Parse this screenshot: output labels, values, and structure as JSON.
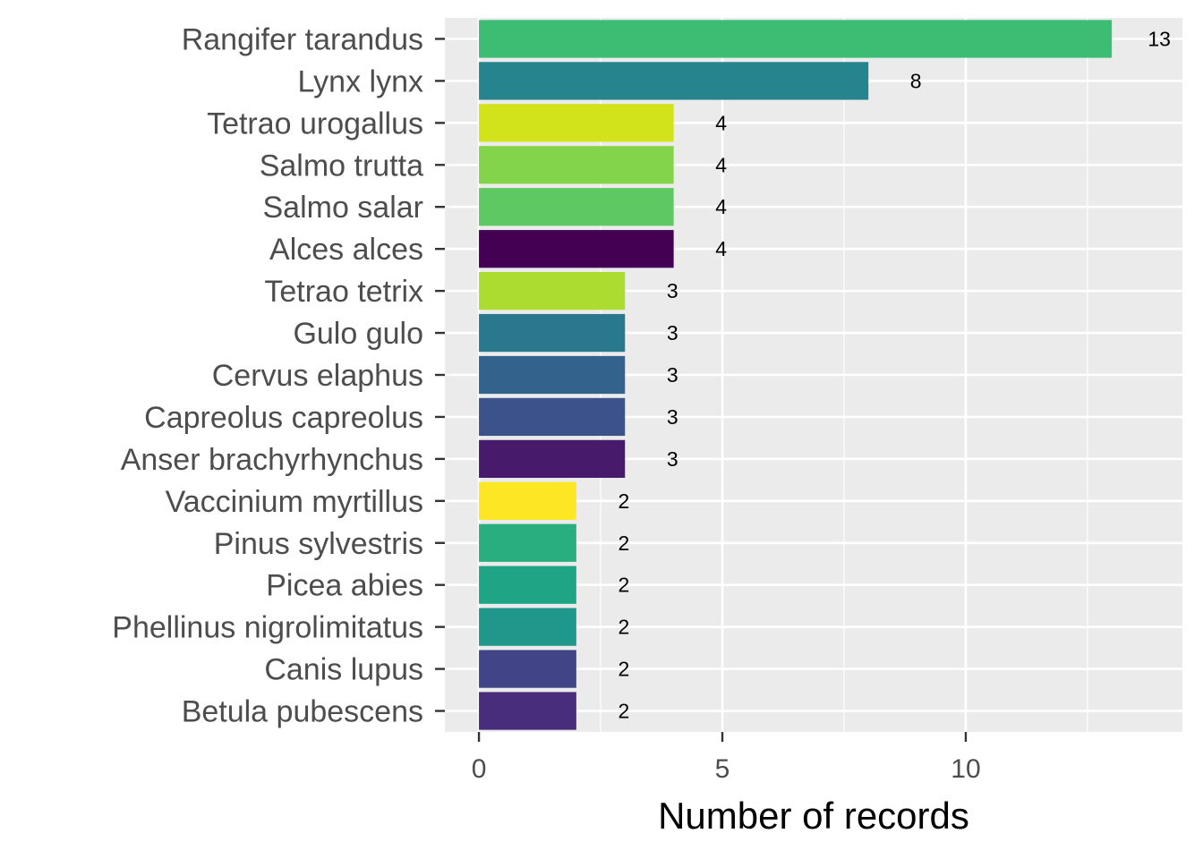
{
  "chart_data": {
    "type": "bar",
    "orientation": "horizontal",
    "title": "",
    "xlabel": "Number of records",
    "ylabel": "",
    "xlim": [
      -0.7,
      14.45
    ],
    "x_ticks": [
      0,
      5,
      10
    ],
    "x_tick_labels": [
      "0",
      "5",
      "10"
    ],
    "grid": true,
    "legend": "none",
    "bars": [
      {
        "category": "Rangifer tarandus",
        "value": 13,
        "label": "13",
        "color": "#3dbc74"
      },
      {
        "category": "Lynx lynx",
        "value": 8,
        "label": "8",
        "color": "#25848e"
      },
      {
        "category": "Tetrao urogallus",
        "value": 4,
        "label": "4",
        "color": "#d2e21b"
      },
      {
        "category": "Salmo trutta",
        "value": 4,
        "label": "4",
        "color": "#84d44b"
      },
      {
        "category": "Salmo salar",
        "value": 4,
        "label": "4",
        "color": "#5ec962"
      },
      {
        "category": "Alces alces",
        "value": 4,
        "label": "4",
        "color": "#440154"
      },
      {
        "category": "Tetrao tetrix",
        "value": 3,
        "label": "3",
        "color": "#addc30"
      },
      {
        "category": "Gulo gulo",
        "value": 3,
        "label": "3",
        "color": "#2a788e"
      },
      {
        "category": "Cervus elaphus",
        "value": 3,
        "label": "3",
        "color": "#33638d"
      },
      {
        "category": "Capreolus capreolus",
        "value": 3,
        "label": "3",
        "color": "#3b528b"
      },
      {
        "category": "Anser brachyrhynchus",
        "value": 3,
        "label": "3",
        "color": "#481a6c"
      },
      {
        "category": "Vaccinium myrtillus",
        "value": 2,
        "label": "2",
        "color": "#fde725"
      },
      {
        "category": "Pinus sylvestris",
        "value": 2,
        "label": "2",
        "color": "#29af7f"
      },
      {
        "category": "Picea abies",
        "value": 2,
        "label": "2",
        "color": "#20a486"
      },
      {
        "category": "Phellinus nigrolimitatus",
        "value": 2,
        "label": "2",
        "color": "#1f988b"
      },
      {
        "category": "Canis lupus",
        "value": 2,
        "label": "2",
        "color": "#414487"
      },
      {
        "category": "Betula pubescens",
        "value": 2,
        "label": "2",
        "color": "#472d7b"
      }
    ]
  }
}
